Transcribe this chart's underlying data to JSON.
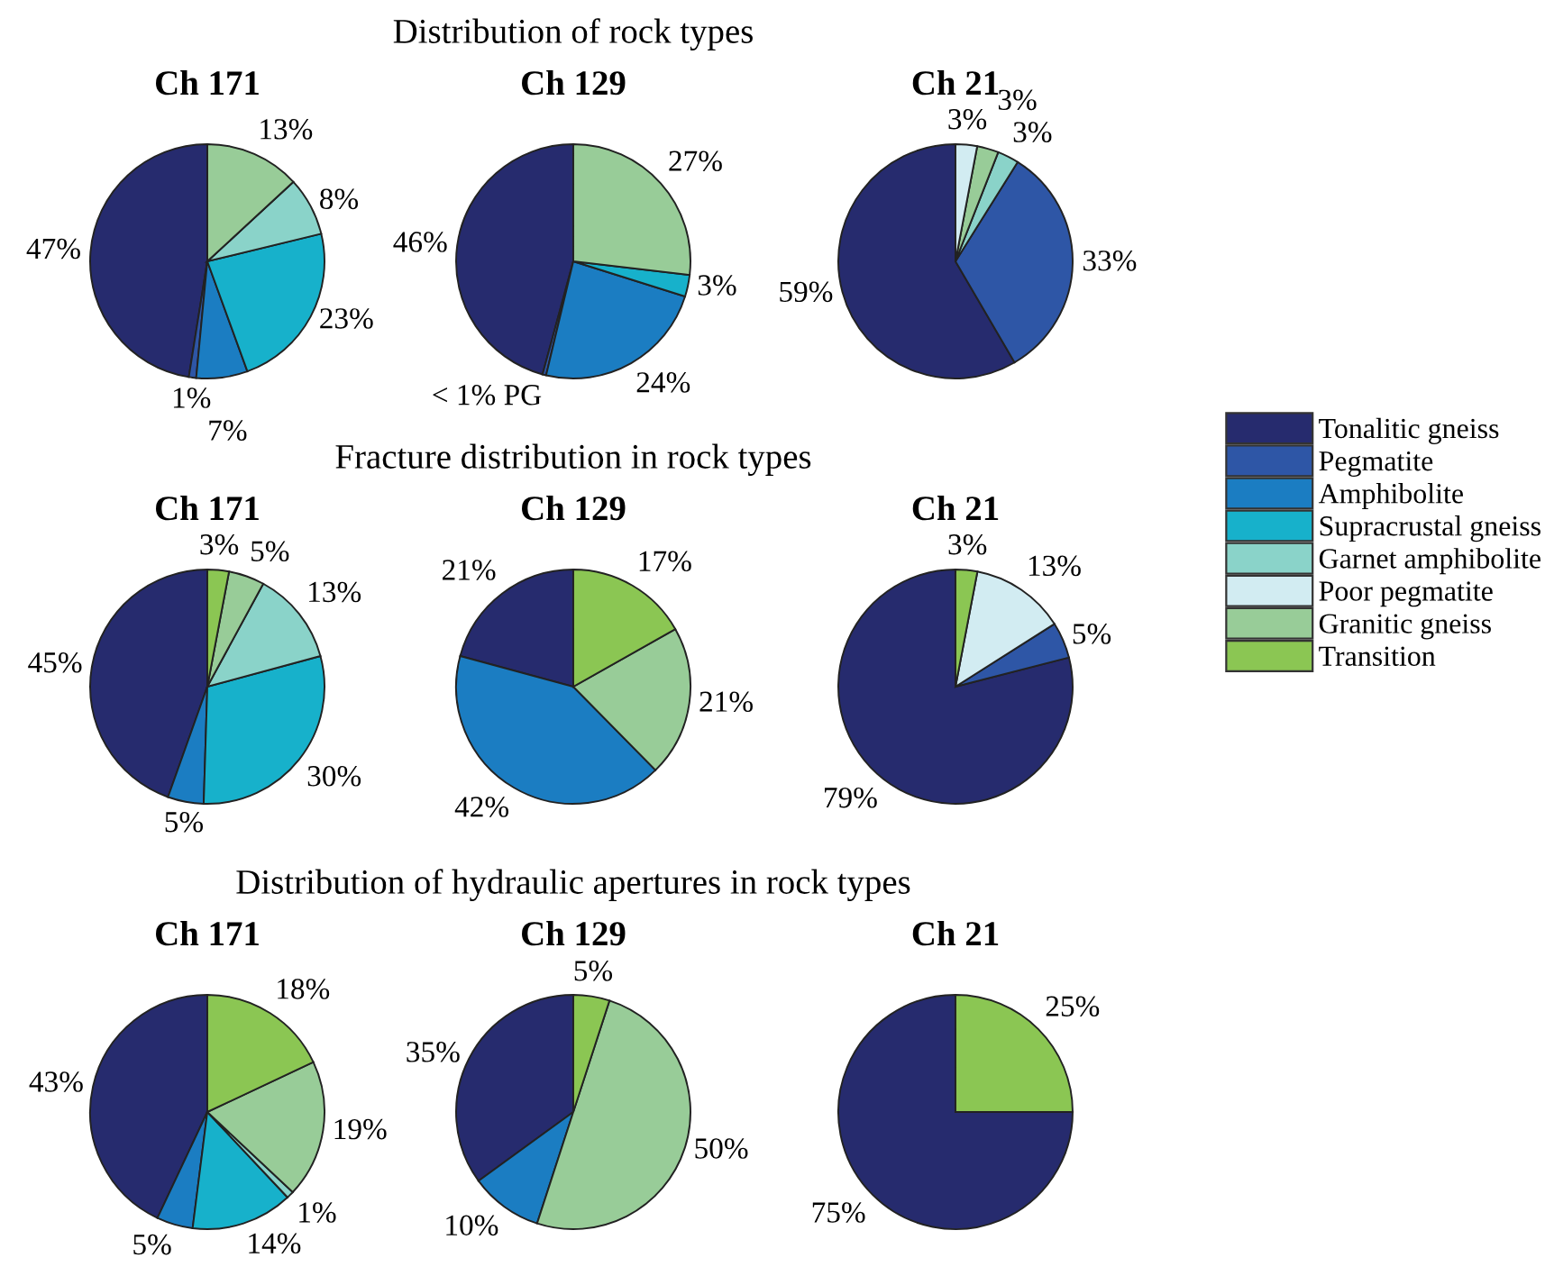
{
  "chart_data": [
    {
      "type": "pie",
      "title": "Ch 171",
      "categories": [
        "Tonalitic gneiss",
        "Pegmatite",
        "Amphibolite",
        "Supracrustal gneiss",
        "Garnet amphibolite",
        "Poor pegmatite",
        "Granitic gneiss",
        "Transition"
      ],
      "values": [
        47,
        1,
        7,
        23,
        8,
        0,
        13,
        0
      ],
      "colors": [
        "#262b6e",
        "#2e56a6",
        "#1b7dc2",
        "#17b1cb",
        "#8ad3c9",
        "#d2ecf2",
        "#98cc98",
        "#8bc653"
      ],
      "value_labels": [
        "47%",
        "1%",
        "7%",
        "23%",
        "8%",
        null,
        "13%",
        null
      ],
      "legend": "right"
    },
    {
      "type": "pie",
      "title": "Ch 129",
      "subtitle": "Distribution of rock types",
      "categories": [
        null,
        null,
        null,
        null,
        null
      ],
      "values": [
        46,
        0.5,
        24,
        3,
        27
      ],
      "colors": [
        "#262b6e",
        "#2e56a6",
        "#1b7dc2",
        "#17b1cb",
        "#98cc98"
      ],
      "value_labels": [
        "46%",
        "< 1% PG",
        "24%",
        "3%",
        "27%"
      ]
    },
    {
      "type": "pie",
      "title": "Ch 21",
      "categories": [
        null,
        null,
        null,
        null,
        null
      ],
      "values": [
        59,
        33,
        3,
        3,
        3
      ],
      "colors": [
        "#262b6e",
        "#2e56a6",
        "#8ad3c9",
        "#98cc98",
        "#d2ecf2"
      ],
      "value_labels": [
        "59%",
        "33%",
        "3%",
        "3%",
        "3%"
      ]
    },
    {
      "type": "pie",
      "title": "Ch 171",
      "categories": [
        null,
        null,
        null,
        null,
        null,
        null
      ],
      "values": [
        45,
        5,
        30,
        13,
        5,
        3
      ],
      "colors": [
        "#262b6e",
        "#1b7dc2",
        "#17b1cb",
        "#8ad3c9",
        "#98cc98",
        "#8bc653"
      ],
      "value_labels": [
        "45%",
        "5%",
        "30%",
        "13%",
        "5%",
        "3%"
      ]
    },
    {
      "type": "pie",
      "title": "Ch 129",
      "subtitle": "Fracture distribution in rock types",
      "categories": [
        null,
        null,
        null,
        null
      ],
      "values": [
        21,
        42,
        21,
        17
      ],
      "colors": [
        "#262b6e",
        "#1b7dc2",
        "#98cc98",
        "#8bc653"
      ],
      "value_labels": [
        "21%",
        "42%",
        "21%",
        "17%"
      ]
    },
    {
      "type": "pie",
      "title": "Ch 21",
      "categories": [
        null,
        null,
        null,
        null
      ],
      "values": [
        79,
        5,
        13,
        3
      ],
      "colors": [
        "#262b6e",
        "#2e56a6",
        "#d2ecf2",
        "#8bc653"
      ],
      "value_labels": [
        "79%",
        "5%",
        "13%",
        "3%"
      ]
    },
    {
      "type": "pie",
      "title": "Ch 171",
      "categories": [
        null,
        null,
        null,
        null,
        null,
        null
      ],
      "values": [
        43,
        5,
        14,
        1,
        19,
        18
      ],
      "colors": [
        "#262b6e",
        "#1b7dc2",
        "#17b1cb",
        "#8ad3c9",
        "#98cc98",
        "#8bc653"
      ],
      "value_labels": [
        "43%",
        "5%",
        "14%",
        "1%",
        "19%",
        "18%"
      ]
    },
    {
      "type": "pie",
      "title": "Ch 129",
      "subtitle": "Distribution of hydraulic apertures in rock types",
      "categories": [
        null,
        null,
        null,
        null
      ],
      "values": [
        35,
        10,
        50,
        5
      ],
      "colors": [
        "#262b6e",
        "#1b7dc2",
        "#98cc98",
        "#8bc653"
      ],
      "value_labels": [
        "35%",
        "10%",
        "50%",
        "5%"
      ]
    },
    {
      "type": "pie",
      "title": "Ch 21",
      "categories": [
        null,
        null
      ],
      "values": [
        75,
        25
      ],
      "colors": [
        "#262b6e",
        "#8bc653"
      ],
      "value_labels": [
        "75%",
        "25%"
      ]
    }
  ]
}
